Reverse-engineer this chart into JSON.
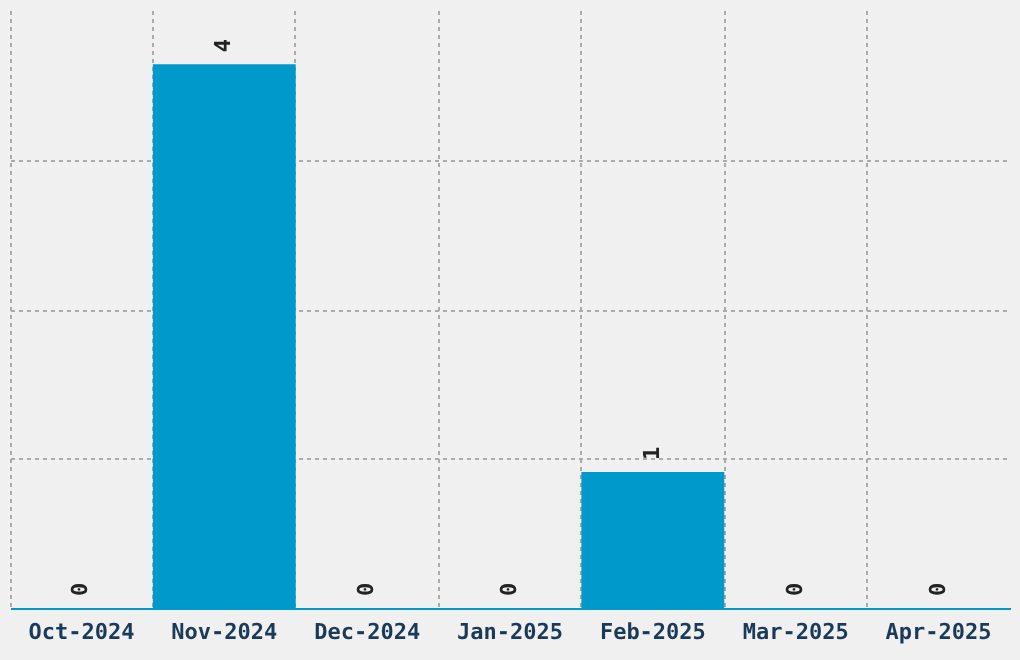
{
  "chart_data": {
    "type": "bar",
    "categories": [
      "Oct-2024",
      "Nov-2024",
      "Dec-2024",
      "Jan-2025",
      "Feb-2025",
      "Mar-2025",
      "Apr-2025"
    ],
    "values": [
      0,
      4,
      0,
      0,
      1,
      0,
      0
    ],
    "color": "#0099cc",
    "data_labels": true,
    "ylim": [
      0,
      4.4
    ],
    "yticks": [
      {
        "value": 1.1,
        "label": null
      },
      {
        "value": 2.2,
        "label": null
      },
      {
        "value": 3.3,
        "label": null
      }
    ],
    "tick_labels": "x",
    "grid": true
  }
}
